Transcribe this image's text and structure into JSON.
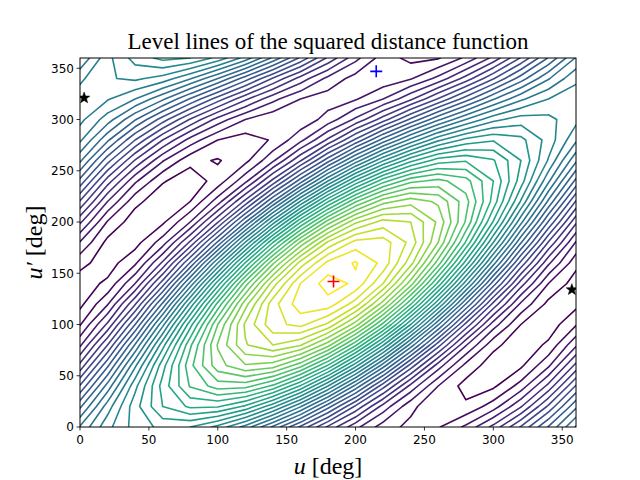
{
  "chart_data": {
    "type": "contour",
    "title": "Level lines of the squared distance function",
    "x_label": "u [deg]",
    "y_label": "u′ [deg]",
    "xlim": [
      0,
      360
    ],
    "ylim": [
      0,
      360
    ],
    "xticks": [
      0,
      50,
      100,
      150,
      200,
      250,
      300,
      350
    ],
    "yticks": [
      0,
      50,
      100,
      150,
      200,
      250,
      300,
      350
    ],
    "x": [
      0,
      20,
      40,
      60,
      80,
      100,
      120,
      140,
      160,
      180,
      200,
      220,
      240,
      260,
      280,
      300,
      320,
      340,
      360
    ],
    "y": [
      0,
      20,
      40,
      60,
      80,
      100,
      120,
      140,
      160,
      180,
      200,
      220,
      240,
      260,
      280,
      300,
      320,
      340,
      360
    ],
    "z": [
      [
        1.41,
        1.67,
        1.84,
        1.93,
        1.9,
        1.77,
        1.56,
        1.28,
        0.98,
        0.68,
        0.43,
        0.25,
        0.17,
        0.19,
        0.32,
        0.53,
        0.81,
        1.11,
        1.41
      ],
      [
        1.18,
        1.55,
        1.86,
        2.1,
        2.22,
        2.21,
        2.08,
        1.83,
        1.51,
        1.14,
        0.78,
        0.46,
        0.23,
        0.11,
        0.12,
        0.25,
        0.49,
        0.82,
        1.18
      ],
      [
        0.91,
        1.34,
        1.77,
        2.14,
        2.41,
        2.55,
        2.54,
        2.38,
        2.09,
        1.7,
        1.27,
        0.84,
        0.47,
        0.2,
        0.06,
        0.08,
        0.24,
        0.53,
        0.91
      ],
      [
        0.63,
        1.08,
        1.58,
        2.06,
        2.47,
        2.76,
        2.89,
        2.85,
        2.64,
        2.29,
        1.84,
        1.35,
        0.86,
        0.45,
        0.17,
        0.04,
        0.08,
        0.28,
        0.63
      ],
      [
        0.38,
        0.8,
        1.31,
        1.86,
        2.38,
        2.81,
        3.09,
        3.2,
        3.11,
        2.84,
        2.42,
        1.91,
        1.36,
        0.84,
        0.41,
        0.13,
        0.03,
        0.12,
        0.38
      ],
      [
        0.19,
        0.52,
        1.0,
        1.57,
        2.16,
        2.7,
        3.12,
        3.37,
        3.43,
        3.28,
        2.95,
        2.47,
        1.9,
        1.31,
        0.77,
        0.35,
        0.1,
        0.04,
        0.19
      ],
      [
        0.07,
        0.29,
        0.69,
        1.22,
        1.83,
        2.43,
        2.96,
        3.36,
        3.56,
        3.56,
        3.35,
        2.95,
        2.41,
        1.81,
        1.2,
        0.67,
        0.28,
        0.07,
        0.07
      ],
      [
        0.05,
        0.12,
        0.4,
        0.85,
        1.43,
        2.05,
        2.65,
        3.15,
        3.5,
        3.65,
        3.58,
        3.3,
        2.85,
        2.27,
        1.65,
        1.05,
        0.55,
        0.2,
        0.05
      ],
      [
        0.13,
        0.05,
        0.18,
        0.52,
        1.01,
        1.6,
        2.21,
        2.78,
        3.24,
        3.53,
        3.61,
        3.47,
        3.14,
        2.65,
        2.06,
        1.44,
        0.87,
        0.42,
        0.13
      ],
      [
        0.29,
        0.07,
        0.06,
        0.25,
        0.62,
        1.12,
        1.71,
        2.3,
        2.82,
        3.22,
        3.44,
        3.45,
        3.27,
        2.9,
        2.39,
        1.8,
        1.21,
        0.69,
        0.29
      ],
      [
        0.52,
        0.19,
        0.04,
        0.08,
        0.3,
        0.69,
        1.19,
        1.75,
        2.29,
        2.75,
        3.08,
        3.24,
        3.2,
        2.98,
        2.59,
        2.09,
        1.53,
        0.99,
        0.52
      ],
      [
        0.79,
        0.4,
        0.13,
        0.03,
        0.1,
        0.35,
        0.73,
        1.2,
        1.71,
        2.19,
        2.59,
        2.86,
        2.96,
        2.88,
        2.64,
        2.26,
        1.79,
        1.28,
        0.79
      ],
      [
        1.07,
        0.65,
        0.32,
        0.11,
        0.04,
        0.14,
        0.37,
        0.73,
        1.15,
        1.6,
        2.02,
        2.36,
        2.57,
        2.63,
        2.54,
        2.3,
        1.95,
        1.52,
        1.07
      ],
      [
        1.32,
        0.94,
        0.59,
        0.31,
        0.13,
        0.09,
        0.17,
        0.38,
        0.69,
        1.06,
        1.44,
        1.79,
        2.07,
        2.25,
        2.29,
        2.21,
        2.0,
        1.69,
        1.32
      ],
      [
        1.52,
        1.22,
        0.9,
        0.6,
        0.36,
        0.2,
        0.15,
        0.21,
        0.37,
        0.62,
        0.92,
        1.24,
        1.53,
        1.78,
        1.93,
        1.99,
        1.93,
        1.76,
        1.52
      ],
      [
        1.63,
        1.45,
        1.21,
        0.95,
        0.69,
        0.46,
        0.3,
        0.22,
        0.23,
        0.34,
        0.52,
        0.75,
        1.02,
        1.28,
        1.5,
        1.67,
        1.75,
        1.73,
        1.63
      ],
      [
        1.65,
        1.61,
        1.5,
        1.32,
        1.09,
        0.85,
        0.62,
        0.43,
        0.3,
        0.25,
        0.29,
        0.4,
        0.58,
        0.81,
        1.05,
        1.29,
        1.48,
        1.6,
        1.65
      ],
      [
        1.58,
        1.69,
        1.72,
        1.66,
        1.51,
        1.3,
        1.05,
        0.79,
        0.56,
        0.37,
        0.26,
        0.23,
        0.29,
        0.43,
        0.64,
        0.89,
        1.15,
        1.39,
        1.58
      ],
      [
        1.41,
        1.67,
        1.84,
        1.93,
        1.9,
        1.77,
        1.56,
        1.28,
        0.98,
        0.68,
        0.43,
        0.25,
        0.17,
        0.19,
        0.32,
        0.53,
        0.81,
        1.11,
        1.41
      ]
    ],
    "levels": [
      0.1,
      0.2,
      0.3,
      0.4,
      0.5,
      0.6,
      0.7,
      0.8,
      0.9,
      1.0,
      1.1,
      1.2,
      1.3,
      1.4,
      1.5,
      1.6,
      1.7,
      1.8,
      1.9,
      2.0,
      2.1,
      2.2,
      2.3,
      2.4,
      2.5,
      2.6,
      2.7,
      2.8,
      2.9,
      3.0,
      3.1,
      3.2,
      3.3,
      3.4,
      3.5,
      3.6
    ],
    "series": [
      {
        "type": "scatter",
        "marker": "plus",
        "color": "#ff0000",
        "x": [
          184
        ],
        "values": [
          142
        ]
      },
      {
        "type": "scatter",
        "marker": "plus",
        "color": "#0000ff",
        "x": [
          215
        ],
        "values": [
          347
        ]
      },
      {
        "type": "scatter",
        "marker": "star",
        "color": "#000000",
        "x": [
          3,
          357
        ],
        "values": [
          321,
          134
        ]
      }
    ]
  }
}
